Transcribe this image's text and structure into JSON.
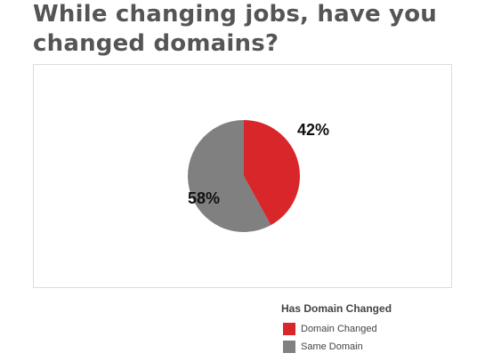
{
  "chart_data": {
    "type": "pie",
    "title": "While changing jobs, have you changed domains?",
    "legend_title": "Has Domain Changed",
    "legend_position": "bottom-right",
    "slices": [
      {
        "label": "Domain Changed",
        "value": 42,
        "value_label": "42%",
        "color": "#d9262a"
      },
      {
        "label": "Same Domain",
        "value": 58,
        "value_label": "58%",
        "color": "#808080"
      }
    ]
  }
}
